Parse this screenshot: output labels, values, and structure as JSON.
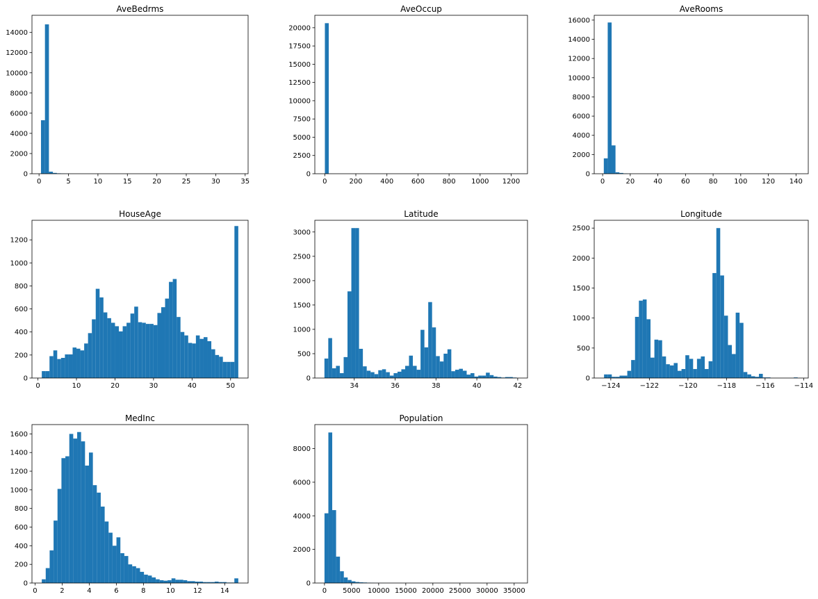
{
  "colors": {
    "bar": "#1f77b4",
    "axes": "#000000",
    "background": "#ffffff"
  },
  "chart_data": [
    {
      "type": "bar",
      "title": "AveBedrms",
      "xlim": [
        -1.2,
        35.5
      ],
      "ylim": [
        0,
        15700
      ],
      "bin_range": [
        0.33,
        34.07
      ],
      "values": [
        5300,
        14800,
        200,
        80,
        40,
        20,
        10,
        5,
        3,
        2,
        1,
        1,
        1,
        0,
        0,
        0,
        0,
        0,
        0,
        0,
        0,
        0,
        0,
        0,
        0,
        0,
        0,
        0,
        0,
        0,
        0,
        0,
        0,
        0,
        0,
        0,
        0,
        0,
        0,
        0,
        0,
        0,
        0,
        0,
        0,
        0,
        0,
        0,
        0,
        1
      ],
      "xticks": [
        0,
        5,
        10,
        15,
        20,
        25,
        30,
        35
      ],
      "xtick_labels": [
        "0",
        "5",
        "10",
        "15",
        "20",
        "25",
        "30",
        "35"
      ],
      "yticks": [
        0,
        2000,
        4000,
        6000,
        8000,
        10000,
        12000,
        14000
      ],
      "ytick_labels": [
        "0",
        "2000",
        "4000",
        "6000",
        "8000",
        "10000",
        "12000",
        "14000"
      ]
    },
    {
      "type": "bar",
      "title": "AveOccup",
      "xlim": [
        -64,
        1305
      ],
      "ylim": [
        0,
        21700
      ],
      "bin_range": [
        0.69,
        1243.33
      ],
      "values": [
        20620,
        10,
        3,
        2,
        1,
        1,
        0,
        0,
        0,
        0,
        0,
        0,
        0,
        0,
        0,
        0,
        0,
        0,
        0,
        0,
        0,
        0,
        0,
        0,
        0,
        0,
        0,
        0,
        0,
        0,
        0,
        0,
        0,
        0,
        0,
        0,
        0,
        0,
        0,
        0,
        0,
        0,
        0,
        0,
        0,
        0,
        0,
        0,
        0,
        1
      ],
      "xticks": [
        0,
        200,
        400,
        600,
        800,
        1000,
        1200
      ],
      "xtick_labels": [
        "0",
        "200",
        "400",
        "600",
        "800",
        "1000",
        "1200"
      ],
      "yticks": [
        0,
        2500,
        5000,
        7500,
        10000,
        12500,
        15000,
        17500,
        20000
      ],
      "ytick_labels": [
        "0",
        "2500",
        "5000",
        "7500",
        "10000",
        "12500",
        "15000",
        "17500",
        "20000"
      ]
    },
    {
      "type": "bar",
      "title": "AveRooms",
      "xlim": [
        -6.1,
        148.9
      ],
      "ylim": [
        0,
        16500
      ],
      "bin_range": [
        0.85,
        141.91
      ],
      "values": [
        1600,
        15750,
        2950,
        150,
        80,
        30,
        10,
        5,
        3,
        2,
        1,
        1,
        1,
        0,
        0,
        0,
        0,
        0,
        0,
        0,
        0,
        0,
        0,
        0,
        0,
        0,
        0,
        0,
        0,
        0,
        0,
        0,
        0,
        0,
        0,
        0,
        0,
        0,
        0,
        0,
        0,
        0,
        0,
        0,
        0,
        0,
        0,
        0,
        0,
        1
      ],
      "xticks": [
        0,
        20,
        40,
        60,
        80,
        100,
        120,
        140
      ],
      "xtick_labels": [
        "0",
        "20",
        "40",
        "60",
        "80",
        "100",
        "120",
        "140"
      ],
      "yticks": [
        0,
        2000,
        4000,
        6000,
        8000,
        10000,
        12000,
        14000,
        16000
      ],
      "ytick_labels": [
        "0",
        "2000",
        "4000",
        "6000",
        "8000",
        "10000",
        "12000",
        "14000",
        "16000"
      ]
    },
    {
      "type": "bar",
      "title": "HouseAge",
      "xlim": [
        -1.55,
        54.55
      ],
      "ylim": [
        0,
        1370
      ],
      "bin_range": [
        1,
        52
      ],
      "values": [
        60,
        60,
        190,
        240,
        165,
        175,
        205,
        205,
        265,
        255,
        240,
        300,
        390,
        510,
        775,
        700,
        570,
        520,
        480,
        450,
        405,
        450,
        480,
        560,
        620,
        485,
        480,
        470,
        470,
        460,
        565,
        615,
        690,
        835,
        860,
        530,
        400,
        370,
        305,
        300,
        370,
        340,
        355,
        320,
        250,
        200,
        185,
        140,
        140,
        140,
        1320
      ],
      "xticks": [
        0,
        10,
        20,
        30,
        40,
        50
      ],
      "xtick_labels": [
        "0",
        "10",
        "20",
        "30",
        "40",
        "50"
      ],
      "yticks": [
        0,
        200,
        400,
        600,
        800,
        1000,
        1200
      ],
      "ytick_labels": [
        "0",
        "200",
        "400",
        "600",
        "800",
        "1000",
        "1200"
      ]
    },
    {
      "type": "bar",
      "title": "Latitude",
      "xlim": [
        32.07,
        42.48
      ],
      "ylim": [
        0,
        3240
      ],
      "bin_range": [
        32.54,
        41.95
      ],
      "values": [
        400,
        820,
        200,
        250,
        100,
        430,
        1780,
        3080,
        3080,
        600,
        240,
        150,
        120,
        80,
        160,
        180,
        120,
        50,
        100,
        130,
        180,
        250,
        460,
        250,
        170,
        990,
        630,
        1560,
        1040,
        450,
        340,
        500,
        590,
        140,
        170,
        190,
        150,
        70,
        100,
        30,
        50,
        50,
        110,
        60,
        30,
        20,
        10,
        20,
        20,
        10
      ],
      "xticks": [
        34,
        36,
        38,
        40,
        42
      ],
      "xtick_labels": [
        "34",
        "36",
        "38",
        "40",
        "42"
      ],
      "yticks": [
        0,
        500,
        1000,
        1500,
        2000,
        2500,
        3000
      ],
      "ytick_labels": [
        "0",
        "500",
        "1000",
        "1500",
        "2000",
        "2500",
        "3000"
      ]
    },
    {
      "type": "bar",
      "title": "Longitude",
      "xlim": [
        -124.86,
        -113.76
      ],
      "ylim": [
        0,
        2630
      ],
      "bin_range": [
        -124.35,
        -114.31
      ],
      "values": [
        60,
        60,
        20,
        20,
        40,
        40,
        120,
        300,
        1020,
        1290,
        1310,
        980,
        340,
        640,
        630,
        360,
        230,
        210,
        250,
        120,
        150,
        380,
        320,
        150,
        320,
        360,
        150,
        280,
        1750,
        2500,
        1710,
        1040,
        550,
        400,
        1090,
        920,
        100,
        60,
        30,
        20,
        70,
        10,
        10,
        0,
        0,
        0,
        0,
        0,
        0,
        10
      ],
      "xticks": [
        -124,
        -122,
        -120,
        -118,
        -116,
        -114
      ],
      "xtick_labels": [
        "−124",
        "−122",
        "−120",
        "−118",
        "−116",
        "−114"
      ],
      "yticks": [
        0,
        500,
        1000,
        1500,
        2000,
        2500
      ],
      "ytick_labels": [
        "0",
        "500",
        "1000",
        "1500",
        "2000",
        "2500"
      ]
    },
    {
      "type": "bar",
      "title": "MedInc",
      "xlim": [
        -0.225,
        15.725
      ],
      "ylim": [
        0,
        1700
      ],
      "bin_range": [
        0.4999,
        15.0001
      ],
      "values": [
        40,
        160,
        350,
        670,
        1010,
        1340,
        1360,
        1600,
        1550,
        1620,
        1520,
        1260,
        1400,
        1050,
        970,
        820,
        660,
        540,
        400,
        490,
        320,
        290,
        200,
        180,
        160,
        120,
        90,
        80,
        60,
        40,
        30,
        25,
        30,
        50,
        35,
        35,
        30,
        20,
        20,
        15,
        15,
        10,
        10,
        10,
        15,
        10,
        10,
        5,
        5,
        50
      ],
      "xticks": [
        0,
        2,
        4,
        6,
        8,
        10,
        12,
        14
      ],
      "xtick_labels": [
        "0",
        "2",
        "4",
        "6",
        "8",
        "10",
        "12",
        "14"
      ],
      "yticks": [
        0,
        200,
        400,
        600,
        800,
        1000,
        1200,
        1400,
        1600
      ],
      "ytick_labels": [
        "0",
        "200",
        "400",
        "600",
        "800",
        "1000",
        "1200",
        "1400",
        "1600"
      ]
    },
    {
      "type": "bar",
      "title": "Population",
      "xlim": [
        -1780,
        37460
      ],
      "ylim": [
        0,
        9430
      ],
      "bin_range": [
        3,
        35682
      ],
      "values": [
        4150,
        8960,
        4340,
        1570,
        700,
        330,
        180,
        100,
        60,
        40,
        30,
        20,
        10,
        5,
        3,
        2,
        1,
        1,
        1,
        1,
        0,
        0,
        0,
        0,
        0,
        0,
        0,
        0,
        0,
        0,
        0,
        0,
        0,
        0,
        0,
        0,
        0,
        0,
        0,
        0,
        0,
        0,
        0,
        0,
        0,
        0,
        0,
        0,
        0,
        1
      ],
      "xticks": [
        0,
        5000,
        10000,
        15000,
        20000,
        25000,
        30000,
        35000
      ],
      "xtick_labels": [
        "0",
        "5000",
        "10000",
        "15000",
        "20000",
        "25000",
        "30000",
        "35000"
      ],
      "yticks": [
        0,
        2000,
        4000,
        6000,
        8000
      ],
      "ytick_labels": [
        "0",
        "2000",
        "4000",
        "6000",
        "8000"
      ]
    }
  ]
}
